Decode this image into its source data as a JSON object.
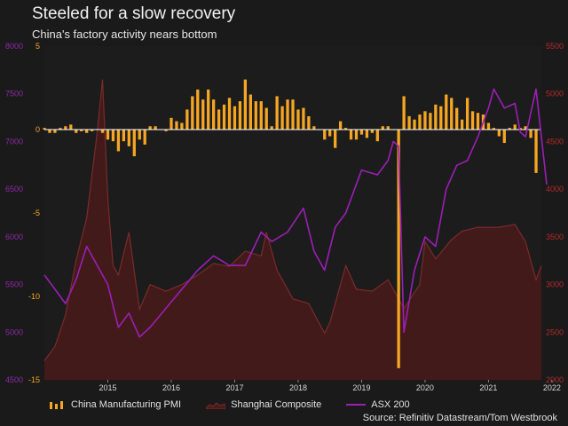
{
  "title": "Steeled for a slow recovery",
  "subtitle": "China's factory activity nears bottom",
  "source": "Source: Refinitiv Datastream/Tom Westbrook",
  "legend": {
    "pmi": "China Manufacturing PMI",
    "shanghai": "Shanghai Composite",
    "asx": "ASX 200"
  },
  "colors": {
    "background": "#1a1a1a",
    "pmi": "#f5a623",
    "shanghai_fill": "#4a1a1a",
    "shanghai_line": "#7a2a2a",
    "asx": "#9b1fb5",
    "left_axis_asx": "#8e2aa8",
    "left_axis_pmi": "#f5a623",
    "right_axis": "#b42a2a",
    "zero_line": "#ffffff"
  },
  "chart_data": {
    "type": "bar+area+line",
    "title": "Steeled for a slow recovery",
    "subtitle": "China's factory activity nears bottom",
    "x_range": [
      "2014-07",
      "2022-05"
    ],
    "x_tick_labels": [
      "2015",
      "2016",
      "2017",
      "2018",
      "2019",
      "2020",
      "2021",
      "2022"
    ],
    "axes": {
      "asx_axis": {
        "side": "left-outer",
        "range": [
          4500,
          8000
        ],
        "ticks": [
          4500,
          5000,
          5500,
          6000,
          6500,
          7000,
          7500,
          8000
        ]
      },
      "pmi_axis": {
        "side": "left-inner",
        "range": [
          -15,
          5
        ],
        "ticks": [
          -15,
          -10,
          -5,
          0,
          5
        ]
      },
      "shanghai_axis": {
        "side": "right",
        "range": [
          2000,
          5500
        ],
        "ticks": [
          2000,
          2500,
          3000,
          3500,
          4000,
          4500,
          5000,
          5500
        ]
      }
    },
    "series": [
      {
        "name": "China Manufacturing PMI",
        "type": "bar",
        "axis": "pmi_axis",
        "x": [
          "2014-07",
          "2014-08",
          "2014-09",
          "2014-10",
          "2014-11",
          "2014-12",
          "2015-01",
          "2015-02",
          "2015-03",
          "2015-04",
          "2015-05",
          "2015-06",
          "2015-07",
          "2015-08",
          "2015-09",
          "2015-10",
          "2015-11",
          "2015-12",
          "2016-01",
          "2016-02",
          "2016-03",
          "2016-04",
          "2016-05",
          "2016-06",
          "2016-07",
          "2016-08",
          "2016-09",
          "2016-10",
          "2016-11",
          "2016-12",
          "2017-01",
          "2017-02",
          "2017-03",
          "2017-04",
          "2017-05",
          "2017-06",
          "2017-07",
          "2017-08",
          "2017-09",
          "2017-10",
          "2017-11",
          "2017-12",
          "2018-01",
          "2018-02",
          "2018-03",
          "2018-04",
          "2018-05",
          "2018-06",
          "2018-07",
          "2018-08",
          "2018-09",
          "2018-10",
          "2018-11",
          "2018-12",
          "2019-01",
          "2019-02",
          "2019-03",
          "2019-04",
          "2019-05",
          "2019-06",
          "2019-07",
          "2019-08",
          "2019-09",
          "2019-10",
          "2019-11",
          "2019-12",
          "2020-01",
          "2020-02",
          "2020-03",
          "2020-04",
          "2020-05",
          "2020-06",
          "2020-07",
          "2020-08",
          "2020-09",
          "2020-10",
          "2020-11",
          "2020-12",
          "2021-01",
          "2021-02",
          "2021-03",
          "2021-04",
          "2021-05",
          "2021-06",
          "2021-07",
          "2021-08",
          "2021-09",
          "2021-10",
          "2021-11",
          "2021-12",
          "2022-01",
          "2022-02",
          "2022-03",
          "2022-04"
        ],
        "values": [
          0.1,
          -0.2,
          -0.2,
          0.1,
          0.2,
          0.3,
          -0.2,
          -0.1,
          -0.2,
          -0.1,
          0.0,
          -0.2,
          -0.6,
          -0.7,
          -1.3,
          -0.7,
          -1.0,
          -1.6,
          -0.6,
          -0.9,
          0.2,
          0.2,
          0.0,
          -0.1,
          0.7,
          0.5,
          0.4,
          1.2,
          2.0,
          2.4,
          1.8,
          2.4,
          1.8,
          1.2,
          1.5,
          1.9,
          1.4,
          1.7,
          3.0,
          2.1,
          1.7,
          1.7,
          1.3,
          0.2,
          2.0,
          1.4,
          1.8,
          1.8,
          1.2,
          1.3,
          0.8,
          0.2,
          0.0,
          -0.6,
          -0.4,
          -1.1,
          0.5,
          0.1,
          -0.6,
          -0.6,
          -0.3,
          -0.5,
          -0.2,
          -0.7,
          0.2,
          0.2,
          0.0,
          -14.3,
          2.0,
          0.8,
          0.6,
          0.9,
          1.1,
          1.0,
          1.5,
          1.4,
          2.1,
          1.9,
          1.3,
          0.6,
          1.9,
          1.1,
          1.0,
          0.9,
          0.4,
          0.1,
          -0.4,
          -0.8,
          0.1,
          0.3,
          0.1,
          0.2,
          -0.5,
          -2.6
        ]
      },
      {
        "name": "Shanghai Composite",
        "type": "area",
        "axis": "shanghai_axis",
        "x": [
          "2014-07",
          "2014-09",
          "2014-11",
          "2015-01",
          "2015-03",
          "2015-05",
          "2015-06",
          "2015-07",
          "2015-08",
          "2015-09",
          "2015-11",
          "2016-01",
          "2016-03",
          "2016-06",
          "2016-09",
          "2016-12",
          "2017-03",
          "2017-06",
          "2017-09",
          "2017-12",
          "2018-01",
          "2018-03",
          "2018-06",
          "2018-09",
          "2018-12",
          "2019-01",
          "2019-04",
          "2019-06",
          "2019-09",
          "2019-12",
          "2020-03",
          "2020-06",
          "2020-07",
          "2020-09",
          "2020-12",
          "2021-02",
          "2021-05",
          "2021-09",
          "2021-12",
          "2022-02",
          "2022-04",
          "2022-05"
        ],
        "values": [
          2200,
          2350,
          2680,
          3250,
          3700,
          4600,
          5150,
          3900,
          3200,
          3100,
          3550,
          2740,
          3000,
          2930,
          3000,
          3100,
          3220,
          3190,
          3350,
          3300,
          3550,
          3150,
          2850,
          2800,
          2490,
          2600,
          3200,
          2950,
          2930,
          3050,
          2750,
          3000,
          3450,
          3270,
          3470,
          3560,
          3600,
          3600,
          3630,
          3450,
          3050,
          3200
        ]
      },
      {
        "name": "ASX 200",
        "type": "line",
        "axis": "asx_axis",
        "x": [
          "2014-07",
          "2014-09",
          "2014-11",
          "2015-01",
          "2015-03",
          "2015-05",
          "2015-07",
          "2015-09",
          "2015-11",
          "2016-01",
          "2016-03",
          "2016-06",
          "2016-09",
          "2016-12",
          "2017-03",
          "2017-06",
          "2017-09",
          "2017-12",
          "2018-02",
          "2018-05",
          "2018-08",
          "2018-10",
          "2018-12",
          "2019-02",
          "2019-04",
          "2019-07",
          "2019-10",
          "2019-12",
          "2020-01",
          "2020-02",
          "2020-03",
          "2020-05",
          "2020-07",
          "2020-09",
          "2020-11",
          "2021-01",
          "2021-03",
          "2021-05",
          "2021-07",
          "2021-08",
          "2021-10",
          "2021-12",
          "2022-01",
          "2022-02",
          "2022-04",
          "2022-05",
          "2022-06"
        ],
        "values": [
          5600,
          5450,
          5300,
          5550,
          5900,
          5700,
          5500,
          5050,
          5200,
          4950,
          5050,
          5250,
          5450,
          5650,
          5800,
          5700,
          5700,
          6050,
          5950,
          6050,
          6300,
          5850,
          5650,
          6100,
          6250,
          6700,
          6650,
          6800,
          7000,
          6950,
          5000,
          5650,
          6000,
          5900,
          6500,
          6750,
          6800,
          7050,
          7350,
          7550,
          7350,
          7400,
          7100,
          7050,
          7550,
          7050,
          6550
        ]
      }
    ]
  }
}
